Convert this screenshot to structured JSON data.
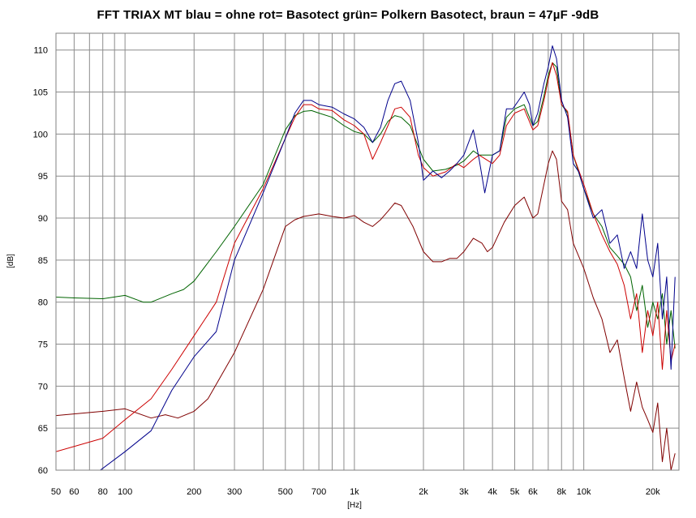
{
  "chart_data": {
    "type": "line",
    "title": "FFT  TRIAX  MT  blau = ohne  rot= Basotect  grün= Polkern Basotect, braun = 47µF -9dB",
    "xlabel": "[Hz]",
    "ylabel": "[dB]",
    "x_scale": "log",
    "xlim": [
      50,
      26000
    ],
    "ylim": [
      60,
      112
    ],
    "grid": true,
    "legend": "none",
    "x_ticks": [
      {
        "value": 50,
        "label": "50"
      },
      {
        "value": 60,
        "label": "60"
      },
      {
        "value": 80,
        "label": "80"
      },
      {
        "value": 100,
        "label": "100"
      },
      {
        "value": 200,
        "label": "200"
      },
      {
        "value": 300,
        "label": "300"
      },
      {
        "value": 500,
        "label": "500"
      },
      {
        "value": 700,
        "label": "700"
      },
      {
        "value": 1000,
        "label": "1k"
      },
      {
        "value": 2000,
        "label": "2k"
      },
      {
        "value": 3000,
        "label": "3k"
      },
      {
        "value": 4000,
        "label": "4k"
      },
      {
        "value": 5000,
        "label": "5k"
      },
      {
        "value": 6000,
        "label": "6k"
      },
      {
        "value": 8000,
        "label": "8k"
      },
      {
        "value": 10000,
        "label": "10k"
      },
      {
        "value": 20000,
        "label": "20k"
      }
    ],
    "y_ticks": [
      60,
      65,
      70,
      75,
      80,
      85,
      90,
      95,
      100,
      105,
      110
    ],
    "series": [
      {
        "color": "#00008b",
        "points": [
          [
            78,
            60
          ],
          [
            100,
            62.2
          ],
          [
            130,
            64.7
          ],
          [
            160,
            69.5
          ],
          [
            200,
            73.5
          ],
          [
            250,
            76.5
          ],
          [
            300,
            85
          ],
          [
            400,
            93
          ],
          [
            500,
            99.5
          ],
          [
            550,
            102.5
          ],
          [
            600,
            104
          ],
          [
            650,
            104
          ],
          [
            700,
            103.5
          ],
          [
            800,
            103.2
          ],
          [
            900,
            102.4
          ],
          [
            1000,
            101.8
          ],
          [
            1100,
            100.8
          ],
          [
            1200,
            99
          ],
          [
            1300,
            100.8
          ],
          [
            1400,
            104
          ],
          [
            1500,
            106
          ],
          [
            1600,
            106.3
          ],
          [
            1750,
            104
          ],
          [
            1900,
            99
          ],
          [
            2000,
            94.5
          ],
          [
            2200,
            95.6
          ],
          [
            2400,
            94.8
          ],
          [
            2600,
            95.6
          ],
          [
            2800,
            96.5
          ],
          [
            3000,
            97.5
          ],
          [
            3300,
            100.5
          ],
          [
            3500,
            97
          ],
          [
            3700,
            93
          ],
          [
            4000,
            97.5
          ],
          [
            4300,
            98
          ],
          [
            4600,
            103
          ],
          [
            4900,
            103
          ],
          [
            5200,
            104
          ],
          [
            5500,
            105
          ],
          [
            5800,
            103.5
          ],
          [
            6000,
            101
          ],
          [
            6300,
            102.5
          ],
          [
            6700,
            106
          ],
          [
            7000,
            108
          ],
          [
            7300,
            110.5
          ],
          [
            7600,
            109
          ],
          [
            8000,
            104
          ],
          [
            8500,
            102
          ],
          [
            9000,
            96.5
          ],
          [
            9500,
            95.5
          ],
          [
            10000,
            93.5
          ],
          [
            11000,
            90
          ],
          [
            12000,
            91
          ],
          [
            13000,
            87
          ],
          [
            14000,
            88
          ],
          [
            15000,
            84
          ],
          [
            16000,
            86
          ],
          [
            17000,
            84
          ],
          [
            18000,
            90.5
          ],
          [
            19000,
            85
          ],
          [
            20000,
            83
          ],
          [
            21000,
            87
          ],
          [
            22000,
            78
          ],
          [
            23000,
            83
          ],
          [
            24000,
            72
          ],
          [
            25000,
            83
          ]
        ]
      },
      {
        "color": "#cc0000",
        "points": [
          [
            50,
            62.2
          ],
          [
            80,
            63.8
          ],
          [
            100,
            66
          ],
          [
            130,
            68.5
          ],
          [
            160,
            72
          ],
          [
            200,
            76
          ],
          [
            250,
            80
          ],
          [
            300,
            87
          ],
          [
            400,
            93.5
          ],
          [
            500,
            99.5
          ],
          [
            550,
            102
          ],
          [
            600,
            103.5
          ],
          [
            650,
            103.5
          ],
          [
            700,
            103
          ],
          [
            800,
            102.8
          ],
          [
            900,
            101.7
          ],
          [
            1000,
            101
          ],
          [
            1100,
            100
          ],
          [
            1200,
            97
          ],
          [
            1300,
            99
          ],
          [
            1400,
            101
          ],
          [
            1500,
            103
          ],
          [
            1600,
            103.2
          ],
          [
            1750,
            102
          ],
          [
            1900,
            97.5
          ],
          [
            2000,
            96
          ],
          [
            2200,
            95
          ],
          [
            2500,
            95.5
          ],
          [
            2800,
            96.5
          ],
          [
            3000,
            96
          ],
          [
            3300,
            97
          ],
          [
            3500,
            97.5
          ],
          [
            4000,
            96.5
          ],
          [
            4300,
            97.5
          ],
          [
            4600,
            101
          ],
          [
            5000,
            102.5
          ],
          [
            5500,
            103
          ],
          [
            6000,
            100.5
          ],
          [
            6300,
            101
          ],
          [
            6700,
            104
          ],
          [
            7000,
            106.5
          ],
          [
            7300,
            108.5
          ],
          [
            7600,
            107
          ],
          [
            8000,
            103.5
          ],
          [
            8500,
            102.7
          ],
          [
            9000,
            97.5
          ],
          [
            10000,
            94
          ],
          [
            11000,
            90.5
          ],
          [
            12000,
            88
          ],
          [
            13000,
            86
          ],
          [
            14000,
            84.5
          ],
          [
            15000,
            82
          ],
          [
            16000,
            78
          ],
          [
            17000,
            81
          ],
          [
            18000,
            74
          ],
          [
            19000,
            79
          ],
          [
            20000,
            76
          ],
          [
            21000,
            80
          ],
          [
            22000,
            72
          ],
          [
            23000,
            79
          ],
          [
            24000,
            73
          ],
          [
            25000,
            75
          ]
        ]
      },
      {
        "color": "#006400",
        "points": [
          [
            50,
            80.6
          ],
          [
            60,
            80.5
          ],
          [
            80,
            80.4
          ],
          [
            100,
            80.8
          ],
          [
            120,
            80.0
          ],
          [
            130,
            80.0
          ],
          [
            160,
            81
          ],
          [
            180,
            81.5
          ],
          [
            200,
            82.5
          ],
          [
            250,
            86
          ],
          [
            300,
            89
          ],
          [
            400,
            94
          ],
          [
            500,
            100.5
          ],
          [
            550,
            102.2
          ],
          [
            600,
            102.7
          ],
          [
            650,
            102.8
          ],
          [
            700,
            102.5
          ],
          [
            800,
            102
          ],
          [
            900,
            101
          ],
          [
            1000,
            100.3
          ],
          [
            1100,
            100
          ],
          [
            1200,
            99
          ],
          [
            1300,
            100
          ],
          [
            1400,
            101.5
          ],
          [
            1500,
            102.2
          ],
          [
            1600,
            102
          ],
          [
            1750,
            101
          ],
          [
            1900,
            98.5
          ],
          [
            2000,
            97
          ],
          [
            2200,
            95.6
          ],
          [
            2500,
            95.8
          ],
          [
            2800,
            96.3
          ],
          [
            3000,
            96.8
          ],
          [
            3300,
            98
          ],
          [
            3500,
            97.5
          ],
          [
            4000,
            97.5
          ],
          [
            4300,
            98
          ],
          [
            4600,
            102
          ],
          [
            5000,
            103
          ],
          [
            5500,
            103.5
          ],
          [
            6000,
            101
          ],
          [
            6300,
            101.5
          ],
          [
            6700,
            104.5
          ],
          [
            7000,
            107
          ],
          [
            7300,
            108.5
          ],
          [
            7600,
            108
          ],
          [
            8000,
            103.5
          ],
          [
            8500,
            102.5
          ],
          [
            9000,
            97.5
          ],
          [
            10000,
            93.5
          ],
          [
            11000,
            90.5
          ],
          [
            12000,
            89
          ],
          [
            13000,
            86.5
          ],
          [
            14000,
            85.5
          ],
          [
            15000,
            84.5
          ],
          [
            16000,
            83
          ],
          [
            17000,
            79
          ],
          [
            18000,
            82
          ],
          [
            19000,
            77
          ],
          [
            20000,
            80
          ],
          [
            21000,
            78
          ],
          [
            22000,
            81
          ],
          [
            23000,
            75
          ],
          [
            24000,
            79
          ],
          [
            25000,
            74.5
          ]
        ]
      },
      {
        "color": "#800000",
        "points": [
          [
            50,
            66.5
          ],
          [
            80,
            67
          ],
          [
            100,
            67.3
          ],
          [
            130,
            66.2
          ],
          [
            150,
            66.6
          ],
          [
            170,
            66.2
          ],
          [
            200,
            67
          ],
          [
            230,
            68.5
          ],
          [
            300,
            74
          ],
          [
            400,
            81.5
          ],
          [
            500,
            89
          ],
          [
            550,
            89.8
          ],
          [
            600,
            90.2
          ],
          [
            700,
            90.5
          ],
          [
            800,
            90.2
          ],
          [
            900,
            90
          ],
          [
            1000,
            90.3
          ],
          [
            1100,
            89.5
          ],
          [
            1200,
            89
          ],
          [
            1300,
            89.8
          ],
          [
            1400,
            90.8
          ],
          [
            1500,
            91.8
          ],
          [
            1600,
            91.5
          ],
          [
            1800,
            89
          ],
          [
            2000,
            86
          ],
          [
            2200,
            84.8
          ],
          [
            2400,
            84.8
          ],
          [
            2600,
            85.2
          ],
          [
            2800,
            85.2
          ],
          [
            3000,
            86
          ],
          [
            3300,
            87.6
          ],
          [
            3600,
            87
          ],
          [
            3800,
            86
          ],
          [
            4000,
            86.5
          ],
          [
            4500,
            89.5
          ],
          [
            5000,
            91.5
          ],
          [
            5500,
            92.5
          ],
          [
            6000,
            90
          ],
          [
            6300,
            90.5
          ],
          [
            6700,
            94
          ],
          [
            7000,
            96.5
          ],
          [
            7300,
            98
          ],
          [
            7600,
            97
          ],
          [
            8000,
            92
          ],
          [
            8500,
            91
          ],
          [
            9000,
            87
          ],
          [
            10000,
            84
          ],
          [
            11000,
            80.5
          ],
          [
            12000,
            78
          ],
          [
            13000,
            74
          ],
          [
            14000,
            75.5
          ],
          [
            15000,
            71
          ],
          [
            16000,
            67
          ],
          [
            17000,
            70.5
          ],
          [
            18000,
            67.5
          ],
          [
            19000,
            66
          ],
          [
            20000,
            64.5
          ],
          [
            21000,
            68
          ],
          [
            22000,
            61
          ],
          [
            23000,
            65
          ],
          [
            24000,
            60
          ],
          [
            25000,
            62
          ]
        ]
      }
    ]
  }
}
